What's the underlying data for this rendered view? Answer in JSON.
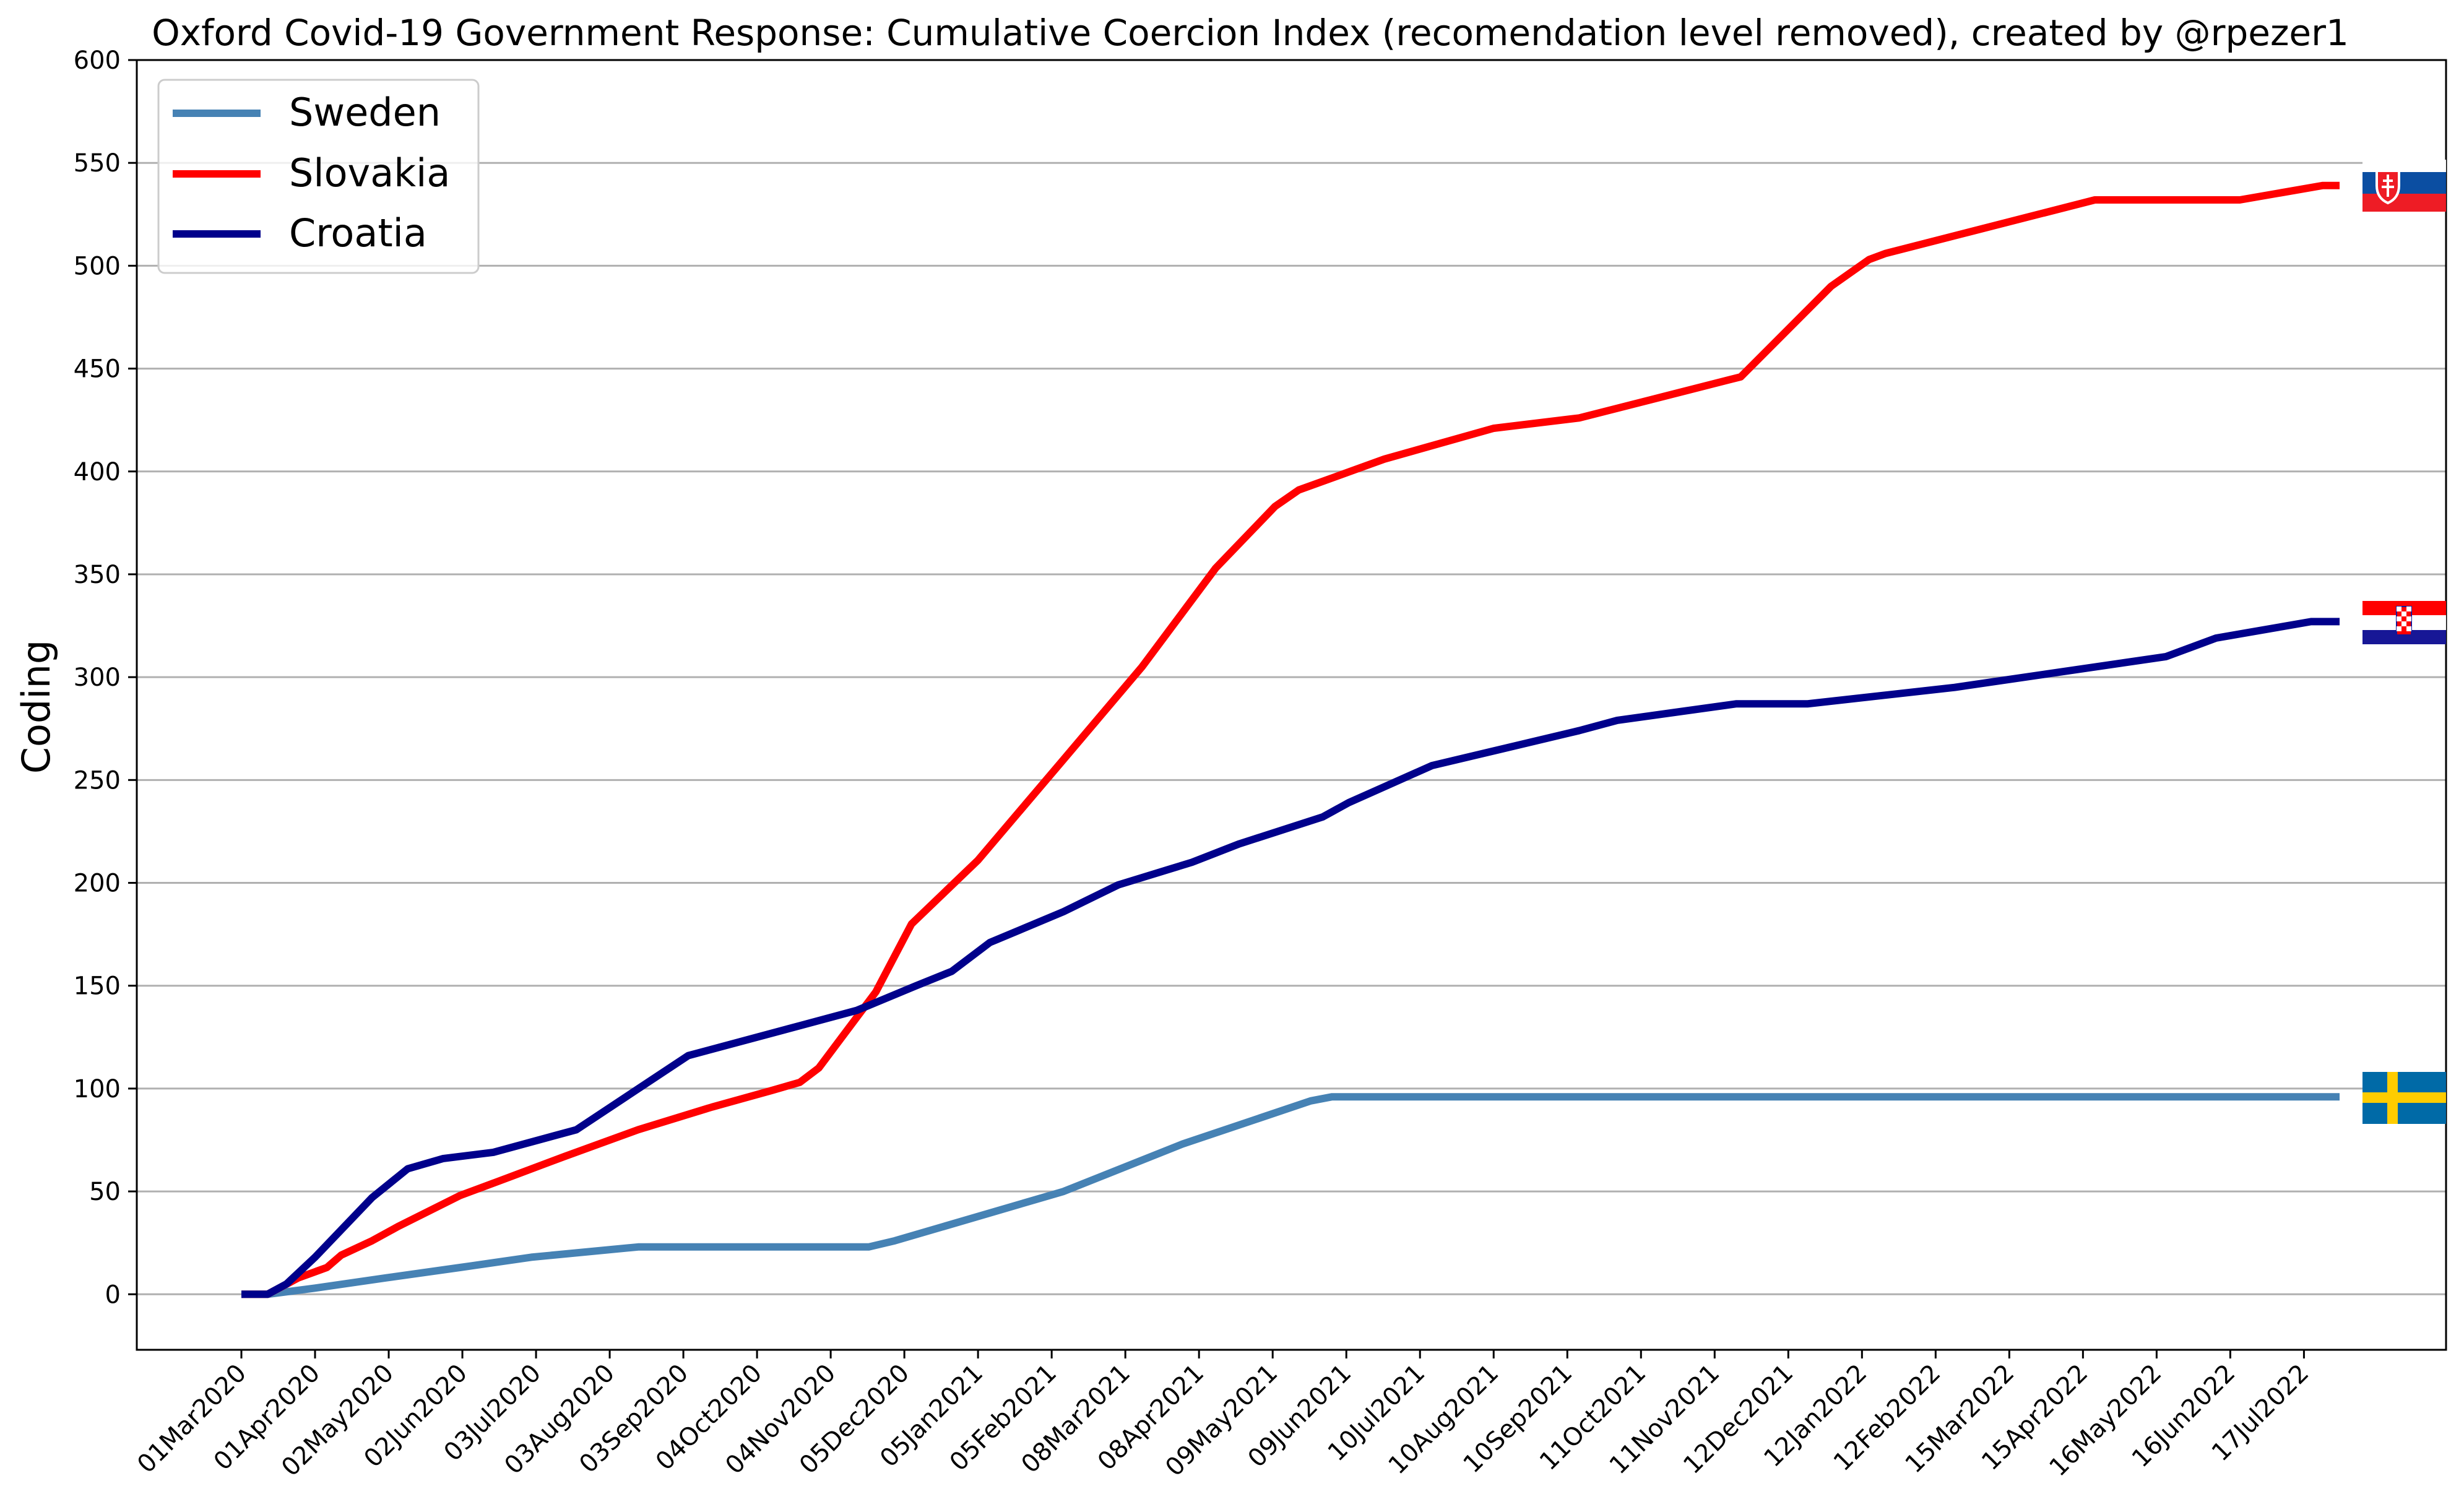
{
  "chart_data": {
    "type": "line",
    "title": "Oxford Covid-19 Government Response: Cumulative Coercion Index (recomendation level removed), created by @rpezer1",
    "ylabel": "Coding",
    "xlabel": "",
    "ylim": [
      -27,
      600
    ],
    "yticks": [
      0,
      50,
      100,
      150,
      200,
      250,
      300,
      350,
      400,
      450,
      500,
      550,
      600
    ],
    "grid": "horizontal",
    "legend_position": "top-left",
    "x_ticks": [
      "01Mar2020",
      "01Apr2020",
      "02May2020",
      "02Jun2020",
      "03Jul2020",
      "03Aug2020",
      "03Sep2020",
      "04Oct2020",
      "04Nov2020",
      "05Dec2020",
      "05Jan2021",
      "05Feb2021",
      "08Mar2021",
      "08Apr2021",
      "09May2021",
      "09Jun2021",
      "10Jul2021",
      "10Aug2021",
      "10Sep2021",
      "11Oct2021",
      "11Nov2021",
      "12Dec2021",
      "12Jan2022",
      "12Feb2022",
      "15Mar2022",
      "15Apr2022",
      "16May2022",
      "16Jun2022",
      "17Jul2022"
    ],
    "series": [
      {
        "name": "Sweden",
        "color": "#4682b4",
        "flag": "sweden-flag",
        "points": [
          [
            "2020-03-01",
            0
          ],
          [
            "2020-03-12",
            0
          ],
          [
            "2020-04-01",
            3
          ],
          [
            "2020-05-01",
            8
          ],
          [
            "2020-06-01",
            13
          ],
          [
            "2020-07-01",
            18
          ],
          [
            "2020-08-15",
            23
          ],
          [
            "2020-11-20",
            23
          ],
          [
            "2020-12-01",
            26
          ],
          [
            "2021-02-10",
            50
          ],
          [
            "2021-04-01",
            73
          ],
          [
            "2021-05-25",
            94
          ],
          [
            "2021-06-03",
            96
          ],
          [
            "2022-08-01",
            96
          ]
        ]
      },
      {
        "name": "Slovakia",
        "color": "#ff0000",
        "flag": "slovakia-flag",
        "points": [
          [
            "2020-03-01",
            0
          ],
          [
            "2020-03-12",
            0
          ],
          [
            "2020-03-25",
            8
          ],
          [
            "2020-04-06",
            13
          ],
          [
            "2020-04-12",
            19
          ],
          [
            "2020-04-25",
            26
          ],
          [
            "2020-05-06",
            33
          ],
          [
            "2020-06-01",
            48
          ],
          [
            "2020-06-15",
            54
          ],
          [
            "2020-07-15",
            67
          ],
          [
            "2020-08-15",
            80
          ],
          [
            "2020-09-15",
            91
          ],
          [
            "2020-10-10",
            99
          ],
          [
            "2020-10-22",
            103
          ],
          [
            "2020-10-30",
            110
          ],
          [
            "2020-11-23",
            147
          ],
          [
            "2020-12-08",
            180
          ],
          [
            "2021-01-05",
            211
          ],
          [
            "2021-02-10",
            260
          ],
          [
            "2021-03-15",
            305
          ],
          [
            "2021-04-15",
            353
          ],
          [
            "2021-05-10",
            383
          ],
          [
            "2021-05-20",
            391
          ],
          [
            "2021-06-25",
            406
          ],
          [
            "2021-08-10",
            421
          ],
          [
            "2021-09-15",
            426
          ],
          [
            "2021-11-22",
            446
          ],
          [
            "2021-12-30",
            490
          ],
          [
            "2022-01-15",
            503
          ],
          [
            "2022-01-22",
            506
          ],
          [
            "2022-04-20",
            532
          ],
          [
            "2022-06-20",
            532
          ],
          [
            "2022-07-25",
            539
          ],
          [
            "2022-08-01",
            539
          ]
        ]
      },
      {
        "name": "Croatia",
        "color": "#00008b",
        "flag": "croatia-flag",
        "points": [
          [
            "2020-03-01",
            0
          ],
          [
            "2020-03-12",
            0
          ],
          [
            "2020-03-20",
            5
          ],
          [
            "2020-04-01",
            18
          ],
          [
            "2020-04-25",
            47
          ],
          [
            "2020-05-10",
            61
          ],
          [
            "2020-05-25",
            66
          ],
          [
            "2020-06-15",
            69
          ],
          [
            "2020-07-20",
            80
          ],
          [
            "2020-09-05",
            116
          ],
          [
            "2020-11-15",
            138
          ],
          [
            "2020-12-10",
            150
          ],
          [
            "2020-12-25",
            157
          ],
          [
            "2021-01-10",
            171
          ],
          [
            "2021-02-10",
            186
          ],
          [
            "2021-03-05",
            199
          ],
          [
            "2021-04-05",
            210
          ],
          [
            "2021-04-25",
            219
          ],
          [
            "2021-05-30",
            232
          ],
          [
            "2021-06-10",
            239
          ],
          [
            "2021-07-15",
            257
          ],
          [
            "2021-09-15",
            274
          ],
          [
            "2021-10-01",
            279
          ],
          [
            "2021-11-20",
            287
          ],
          [
            "2021-12-20",
            287
          ],
          [
            "2022-02-20",
            295
          ],
          [
            "2022-05-20",
            310
          ],
          [
            "2022-06-10",
            319
          ],
          [
            "2022-07-20",
            327
          ],
          [
            "2022-08-01",
            327
          ]
        ]
      }
    ]
  }
}
